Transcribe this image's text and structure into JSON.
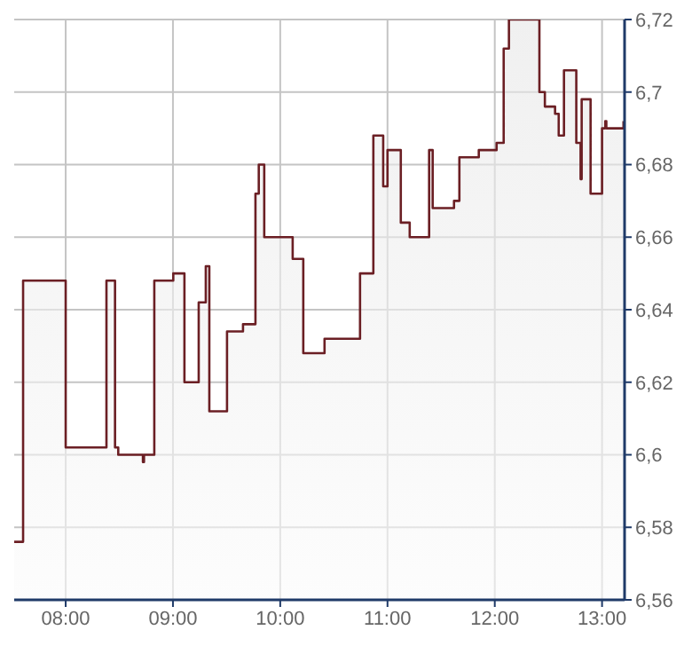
{
  "chart_data": {
    "type": "area",
    "x": [
      7.52,
      7.603,
      7.603,
      8.0,
      8.0,
      8.38,
      8.38,
      8.46,
      8.46,
      8.49,
      8.49,
      8.72,
      8.72,
      8.73,
      8.73,
      8.826,
      8.826,
      9.003,
      9.003,
      9.107,
      9.107,
      9.24,
      9.24,
      9.306,
      9.306,
      9.339,
      9.339,
      9.504,
      9.504,
      9.653,
      9.653,
      9.769,
      9.769,
      9.8,
      9.8,
      9.851,
      9.851,
      10.116,
      10.116,
      10.215,
      10.215,
      10.413,
      10.413,
      10.744,
      10.744,
      10.868,
      10.868,
      10.96,
      10.96,
      11.0,
      11.0,
      11.124,
      11.124,
      11.207,
      11.207,
      11.388,
      11.388,
      11.421,
      11.421,
      11.62,
      11.62,
      11.67,
      11.67,
      11.851,
      11.851,
      12.017,
      12.017,
      12.083,
      12.083,
      12.132,
      12.132,
      12.416,
      12.416,
      12.467,
      12.467,
      12.562,
      12.562,
      12.596,
      12.596,
      12.645,
      12.645,
      12.76,
      12.76,
      12.8,
      12.8,
      12.81,
      12.81,
      12.893,
      12.893,
      13.0,
      13.0,
      13.03,
      13.03,
      13.04,
      13.04,
      13.2,
      13.2
    ],
    "series": [
      {
        "color": "#6b1f24",
        "values": [
          6.576,
          6.576,
          6.648,
          6.648,
          6.602,
          6.602,
          6.648,
          6.648,
          6.602,
          6.602,
          6.6,
          6.6,
          6.598,
          6.598,
          6.6,
          6.6,
          6.648,
          6.648,
          6.65,
          6.65,
          6.62,
          6.62,
          6.642,
          6.642,
          6.652,
          6.652,
          6.612,
          6.612,
          6.634,
          6.634,
          6.636,
          6.636,
          6.672,
          6.672,
          6.68,
          6.68,
          6.66,
          6.66,
          6.654,
          6.654,
          6.628,
          6.628,
          6.632,
          6.632,
          6.65,
          6.65,
          6.688,
          6.688,
          6.674,
          6.674,
          6.684,
          6.684,
          6.664,
          6.664,
          6.66,
          6.66,
          6.684,
          6.684,
          6.668,
          6.668,
          6.67,
          6.67,
          6.682,
          6.682,
          6.684,
          6.684,
          6.686,
          6.686,
          6.712,
          6.712,
          6.72,
          6.72,
          6.7,
          6.7,
          6.696,
          6.696,
          6.694,
          6.694,
          6.688,
          6.688,
          6.706,
          6.706,
          6.686,
          6.686,
          6.676,
          6.676,
          6.698,
          6.698,
          6.672,
          6.672,
          6.69,
          6.69,
          6.692,
          6.692,
          6.69,
          6.69,
          6.692
        ]
      }
    ],
    "xlim": [
      7.52,
      13.21
    ],
    "xticks": [
      {
        "value": 8,
        "label": "08:00"
      },
      {
        "value": 9,
        "label": "09:00"
      },
      {
        "value": 10,
        "label": "10:00"
      },
      {
        "value": 11,
        "label": "11:00"
      },
      {
        "value": 12,
        "label": "12:00"
      },
      {
        "value": 13,
        "label": "13:00"
      }
    ],
    "ylim": [
      6.56,
      6.72
    ],
    "yticks": [
      {
        "value": 6.56,
        "label": "6,56"
      },
      {
        "value": 6.58,
        "label": "6,58"
      },
      {
        "value": 6.6,
        "label": "6,6"
      },
      {
        "value": 6.62,
        "label": "6,62"
      },
      {
        "value": 6.64,
        "label": "6,64"
      },
      {
        "value": 6.66,
        "label": "6,66"
      },
      {
        "value": 6.68,
        "label": "6,68"
      },
      {
        "value": 6.7,
        "label": "6,7"
      },
      {
        "value": 6.72,
        "label": "6,72"
      }
    ],
    "grid": true
  }
}
